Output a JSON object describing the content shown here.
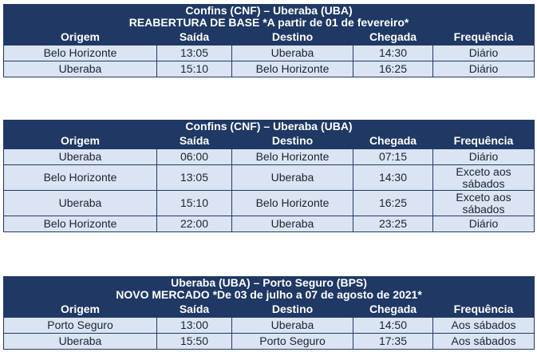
{
  "columns": [
    "Origem",
    "Saída",
    "Destino",
    "Chegada",
    "Frequência"
  ],
  "tables": [
    {
      "title": "Confins (CNF) – Uberaba (UBA)",
      "subtitle": "REABERTURA DE BASE *A partir de 01 de fevereiro*",
      "rows": [
        [
          "Belo Horizonte",
          "13:05",
          "Uberaba",
          "14:30",
          "Diário"
        ],
        [
          "Uberaba",
          "15:10",
          "Belo Horizonte",
          "16:25",
          "Diário"
        ]
      ]
    },
    {
      "title": "Confins (CNF) – Uberaba (UBA)",
      "rows": [
        [
          "Uberaba",
          "06:00",
          "Belo Horizonte",
          "07:15",
          "Diário"
        ],
        [
          "Belo Horizonte",
          "13:05",
          "Uberaba",
          "14:30",
          "Exceto aos sábados"
        ],
        [
          "Uberaba",
          "15:10",
          "Belo Horizonte",
          "16:25",
          "Exceto aos sábados"
        ],
        [
          "Belo Horizonte",
          "22:00",
          "Uberaba",
          "23:25",
          "Diário"
        ]
      ]
    },
    {
      "title": "Uberaba (UBA) – Porto Seguro (BPS)",
      "subtitle": "NOVO MERCADO *De 03 de julho a 07 de agosto de 2021*",
      "rows": [
        [
          "Porto Seguro",
          "13:00",
          "Uberaba",
          "14:50",
          "Aos sábados"
        ],
        [
          "Uberaba",
          "15:50",
          "Porto Seguro",
          "17:35",
          "Aos sábados"
        ]
      ]
    }
  ],
  "colors": {
    "header_bg": "#1f3864",
    "header_text": "#ffffff",
    "cell_bg": "#dbe4f2",
    "border": "#1f3a66"
  }
}
